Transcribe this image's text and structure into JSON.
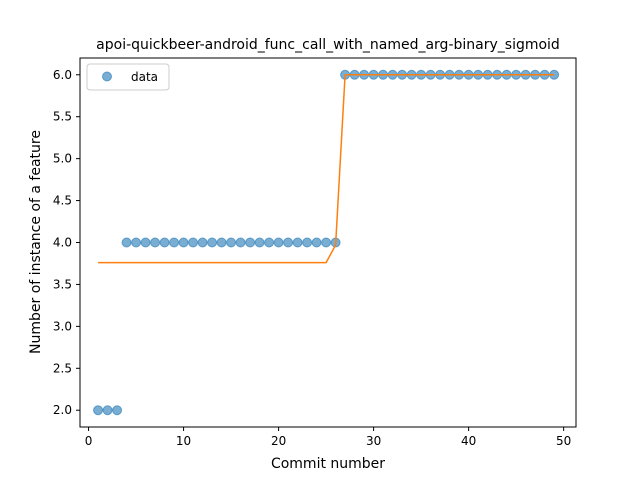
{
  "chart_data": {
    "type": "scatter",
    "title": "apoi-quickbeer-android_func_call_with_named_arg-binary_sigmoid",
    "xlabel": "Commit number",
    "ylabel": "Number of instance of a feature",
    "xlim": [
      -0.9,
      51.3
    ],
    "ylim": [
      1.8,
      6.2
    ],
    "xticks": [
      0,
      10,
      20,
      30,
      40,
      50
    ],
    "xtick_labels": [
      "0",
      "10",
      "20",
      "30",
      "40",
      "50"
    ],
    "yticks": [
      2.0,
      2.5,
      3.0,
      3.5,
      4.0,
      4.5,
      5.0,
      5.5,
      6.0
    ],
    "ytick_labels": [
      "2.0",
      "2.5",
      "3.0",
      "3.5",
      "4.0",
      "4.5",
      "5.0",
      "5.5",
      "6.0"
    ],
    "grid": false,
    "legend_position": "top-left",
    "series": [
      {
        "name": "data",
        "kind": "scatter",
        "color": "#1f77b4",
        "x": [
          1,
          2,
          3,
          4,
          5,
          6,
          7,
          8,
          9,
          10,
          11,
          12,
          13,
          14,
          15,
          16,
          17,
          18,
          19,
          20,
          21,
          22,
          23,
          24,
          25,
          26,
          27,
          28,
          29,
          30,
          31,
          32,
          33,
          34,
          35,
          36,
          37,
          38,
          39,
          40,
          41,
          42,
          43,
          44,
          45,
          46,
          47,
          48,
          49
        ],
        "y": [
          2,
          2,
          2,
          4,
          4,
          4,
          4,
          4,
          4,
          4,
          4,
          4,
          4,
          4,
          4,
          4,
          4,
          4,
          4,
          4,
          4,
          4,
          4,
          4,
          4,
          4,
          6,
          6,
          6,
          6,
          6,
          6,
          6,
          6,
          6,
          6,
          6,
          6,
          6,
          6,
          6,
          6,
          6,
          6,
          6,
          6,
          6,
          6,
          6
        ]
      },
      {
        "kind": "line",
        "color": "#ff7f0e",
        "x": [
          1,
          2,
          3,
          4,
          5,
          6,
          7,
          8,
          9,
          10,
          11,
          12,
          13,
          14,
          15,
          16,
          17,
          18,
          19,
          20,
          21,
          22,
          23,
          24,
          25,
          26,
          27,
          28,
          29,
          30,
          31,
          32,
          33,
          34,
          35,
          36,
          37,
          38,
          39,
          40,
          41,
          42,
          43,
          44,
          45,
          46,
          47,
          48,
          49
        ],
        "y": [
          3.76,
          3.76,
          3.76,
          3.76,
          3.76,
          3.76,
          3.76,
          3.76,
          3.76,
          3.76,
          3.76,
          3.76,
          3.76,
          3.76,
          3.76,
          3.76,
          3.76,
          3.76,
          3.76,
          3.76,
          3.76,
          3.76,
          3.76,
          3.76,
          3.76,
          3.97,
          6.0,
          6.0,
          6.0,
          6.0,
          6.0,
          6.0,
          6.0,
          6.0,
          6.0,
          6.0,
          6.0,
          6.0,
          6.0,
          6.0,
          6.0,
          6.0,
          6.0,
          6.0,
          6.0,
          6.0,
          6.0,
          6.0,
          6.0
        ]
      }
    ]
  }
}
